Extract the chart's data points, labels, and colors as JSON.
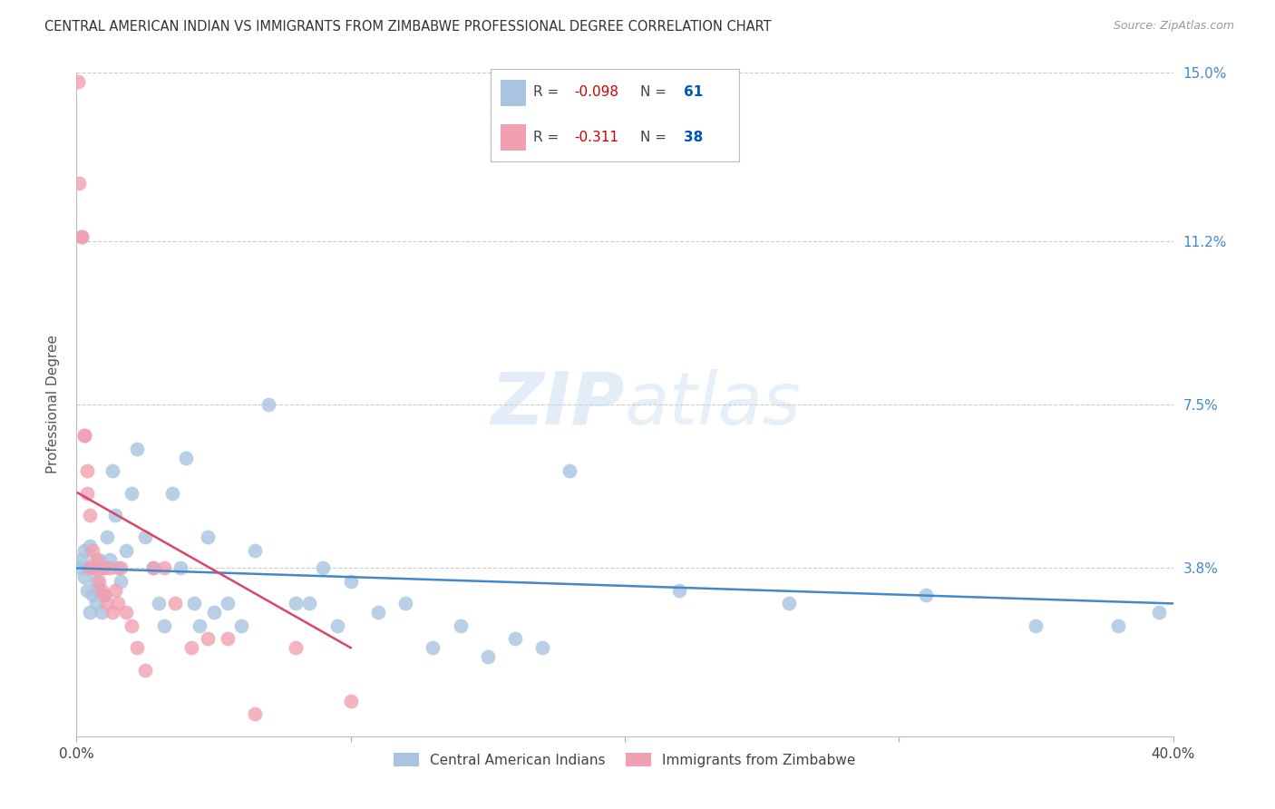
{
  "title": "CENTRAL AMERICAN INDIAN VS IMMIGRANTS FROM ZIMBABWE PROFESSIONAL DEGREE CORRELATION CHART",
  "source": "Source: ZipAtlas.com",
  "ylabel": "Professional Degree",
  "xlim": [
    0.0,
    0.4
  ],
  "ylim": [
    0.0,
    0.15
  ],
  "ytick_values": [
    0.0,
    0.038,
    0.075,
    0.112,
    0.15
  ],
  "ytick_labels": [
    "",
    "3.8%",
    "7.5%",
    "11.2%",
    "15.0%"
  ],
  "grid_color": "#cccccc",
  "background_color": "#ffffff",
  "series1_color": "#a8c4e0",
  "series2_color": "#f0a0b0",
  "series1_label": "Central American Indians",
  "series2_label": "Immigrants from Zimbabwe",
  "series1_R": "-0.098",
  "series1_N": "61",
  "series2_R": "-0.311",
  "series2_N": "38",
  "trendline1_color": "#4488cc",
  "trendline2_color": "#dd4466",
  "series1_x": [
    0.001,
    0.002,
    0.003,
    0.003,
    0.004,
    0.005,
    0.005,
    0.006,
    0.006,
    0.007,
    0.007,
    0.008,
    0.008,
    0.009,
    0.01,
    0.01,
    0.011,
    0.012,
    0.013,
    0.014,
    0.015,
    0.016,
    0.018,
    0.02,
    0.022,
    0.025,
    0.028,
    0.03,
    0.032,
    0.035,
    0.038,
    0.04,
    0.043,
    0.045,
    0.048,
    0.05,
    0.055,
    0.06,
    0.065,
    0.07,
    0.08,
    0.085,
    0.09,
    0.095,
    0.1,
    0.11,
    0.12,
    0.13,
    0.14,
    0.15,
    0.16,
    0.17,
    0.18,
    0.22,
    0.26,
    0.31,
    0.35,
    0.38,
    0.395,
    0.004,
    0.009
  ],
  "series1_y": [
    0.038,
    0.04,
    0.036,
    0.042,
    0.033,
    0.028,
    0.043,
    0.032,
    0.038,
    0.035,
    0.03,
    0.033,
    0.04,
    0.038,
    0.032,
    0.038,
    0.045,
    0.04,
    0.06,
    0.05,
    0.038,
    0.035,
    0.042,
    0.055,
    0.065,
    0.045,
    0.038,
    0.03,
    0.025,
    0.055,
    0.038,
    0.063,
    0.03,
    0.025,
    0.045,
    0.028,
    0.03,
    0.025,
    0.042,
    0.075,
    0.03,
    0.03,
    0.038,
    0.025,
    0.035,
    0.028,
    0.03,
    0.02,
    0.025,
    0.018,
    0.022,
    0.02,
    0.06,
    0.033,
    0.03,
    0.032,
    0.025,
    0.025,
    0.028,
    0.038,
    0.028
  ],
  "series2_x": [
    0.0005,
    0.001,
    0.002,
    0.002,
    0.003,
    0.003,
    0.004,
    0.004,
    0.005,
    0.005,
    0.006,
    0.006,
    0.007,
    0.007,
    0.008,
    0.008,
    0.009,
    0.01,
    0.01,
    0.011,
    0.012,
    0.013,
    0.014,
    0.015,
    0.016,
    0.018,
    0.02,
    0.022,
    0.025,
    0.028,
    0.032,
    0.036,
    0.042,
    0.048,
    0.055,
    0.065,
    0.08,
    0.1
  ],
  "series2_y": [
    0.148,
    0.125,
    0.113,
    0.113,
    0.068,
    0.068,
    0.055,
    0.06,
    0.05,
    0.038,
    0.038,
    0.042,
    0.04,
    0.038,
    0.035,
    0.038,
    0.033,
    0.038,
    0.032,
    0.03,
    0.038,
    0.028,
    0.033,
    0.03,
    0.038,
    0.028,
    0.025,
    0.02,
    0.015,
    0.038,
    0.038,
    0.03,
    0.02,
    0.022,
    0.022,
    0.005,
    0.02,
    0.008
  ],
  "trendline1_x0": 0.0,
  "trendline1_x1": 0.4,
  "trendline1_y0": 0.038,
  "trendline1_y1": 0.03,
  "trendline2_x0": 0.0005,
  "trendline2_x1": 0.1,
  "trendline2_y0": 0.055,
  "trendline2_y1": 0.02
}
